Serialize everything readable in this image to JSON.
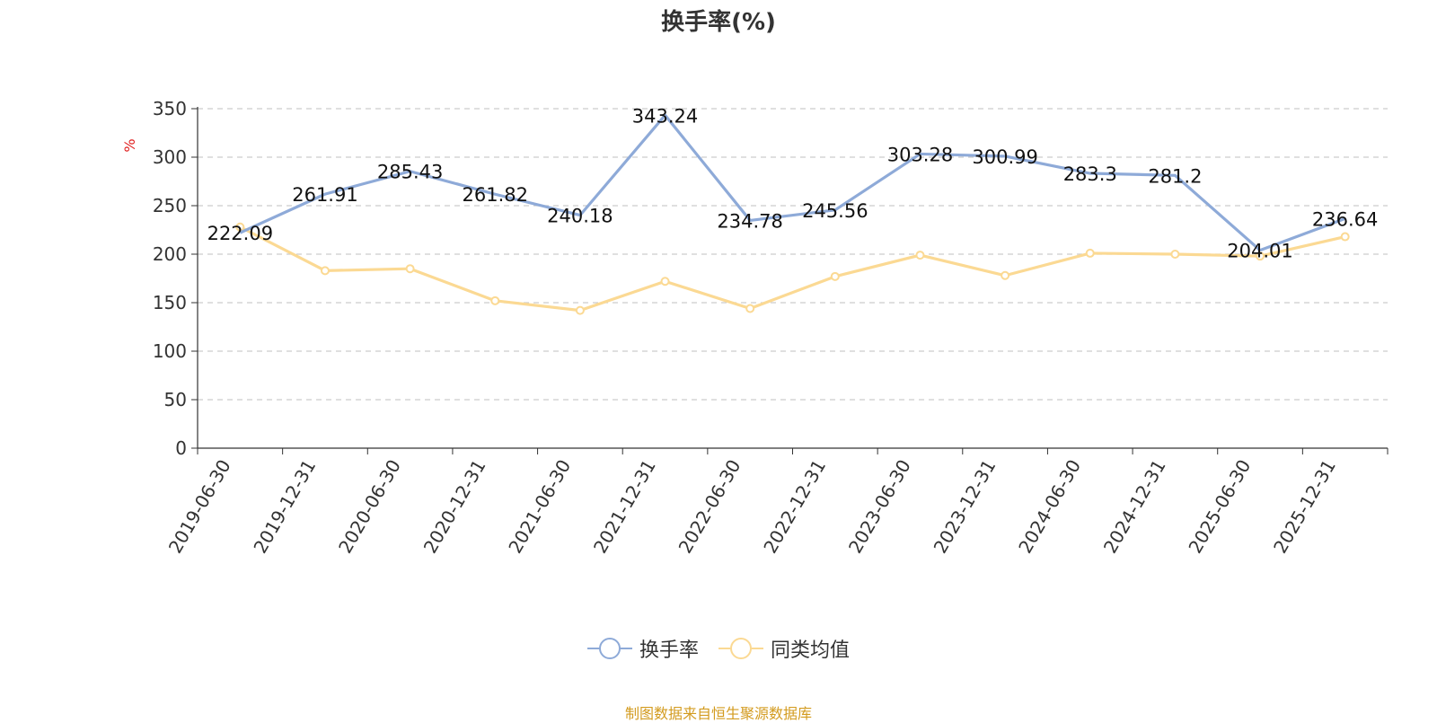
{
  "chart_data": {
    "type": "line",
    "title": "换手率(%)",
    "ylabel": "%",
    "xlabel": "",
    "ylim": [
      0,
      350
    ],
    "yticks": [
      0,
      50,
      100,
      150,
      200,
      250,
      300,
      350
    ],
    "grid": true,
    "legend_position": "bottom",
    "categories": [
      "2019-06-30",
      "2019-12-31",
      "2020-06-30",
      "2020-12-31",
      "2021-06-30",
      "2021-12-31",
      "2022-06-30",
      "2022-12-31",
      "2023-06-30",
      "2023-12-31",
      "2024-06-30",
      "2024-12-31",
      "2025-06-30",
      "2025-12-31"
    ],
    "series": [
      {
        "name": "换手率",
        "color": "#8eaad8",
        "values": [
          222.09,
          261.91,
          285.43,
          261.82,
          240.18,
          343.24,
          234.78,
          245.56,
          303.28,
          300.99,
          283.3,
          281.2,
          204.01,
          236.64
        ],
        "labels": [
          "222.09",
          "261.91",
          "285.43",
          "261.82",
          "240.18",
          "343.24",
          "234.78",
          "245.56",
          "303.28",
          "300.99",
          "283.3",
          "281.2",
          "204.01",
          "236.64"
        ]
      },
      {
        "name": "同类均值",
        "color": "#fbd993",
        "values": [
          228,
          183,
          185,
          152,
          142,
          172,
          144,
          177,
          199,
          178,
          201,
          200,
          198,
          218
        ]
      }
    ]
  },
  "source_text": "制图数据来自恒生聚源数据库"
}
